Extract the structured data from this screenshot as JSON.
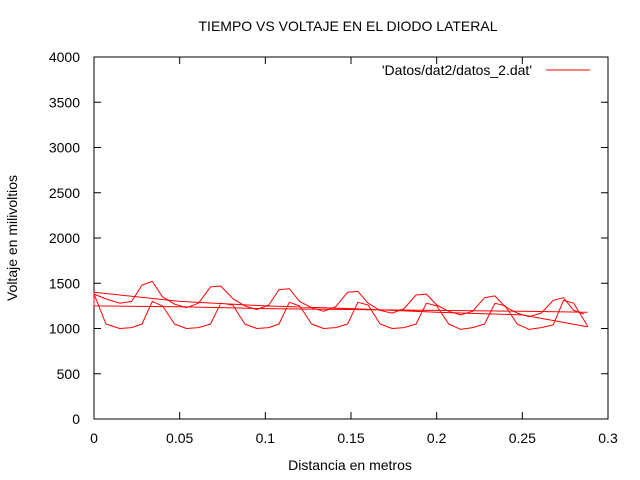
{
  "chart_data": {
    "type": "line",
    "title": "TIEMPO VS VOLTAJE EN EL DIODO LATERAL",
    "xlabel": "Distancia en metros",
    "ylabel": "Voltaje en milivoltios",
    "xlim": [
      0,
      0.3
    ],
    "ylim": [
      0,
      4000
    ],
    "xticks": [
      0,
      0.05,
      0.1,
      0.15,
      0.2,
      0.25,
      0.3
    ],
    "xtick_labels": [
      "0",
      "0.05",
      "0.1",
      "0.15",
      "0.2",
      "0.25",
      "0.3"
    ],
    "yticks": [
      0,
      500,
      1000,
      1500,
      2000,
      2500,
      3000,
      3500,
      4000
    ],
    "ytick_labels": [
      "0",
      "500",
      "1000",
      "1500",
      "2000",
      "2500",
      "3000",
      "3500",
      "4000"
    ],
    "grid": false,
    "legend_position": "top-right",
    "series": [
      {
        "name": "'Datos/dat2/datos_2.dat'",
        "color": "#ff0000",
        "x": [
          0,
          0.007,
          0.015,
          0.022,
          0.028,
          0.034,
          0.04,
          0.047,
          0.054,
          0.061,
          0.068,
          0.074,
          0.081,
          0.088,
          0.095,
          0.102,
          0.108,
          0.114,
          0.12,
          0.127,
          0.134,
          0.141,
          0.148,
          0.154,
          0.16,
          0.167,
          0.174,
          0.181,
          0.188,
          0.194,
          0.2,
          0.207,
          0.214,
          0.221,
          0.228,
          0.234,
          0.24,
          0.247,
          0.254,
          0.261,
          0.268,
          0.274,
          0.28,
          0.288,
          0.288,
          0.25,
          0.2,
          0.15,
          0.1,
          0.05,
          0,
          0,
          0.05,
          0.1,
          0.15,
          0.2,
          0.25,
          0.288
        ],
        "y": [
          1380,
          1050,
          1000,
          1010,
          1050,
          1300,
          1250,
          1050,
          1000,
          1010,
          1050,
          1280,
          1260,
          1050,
          1000,
          1010,
          1050,
          1290,
          1250,
          1050,
          1000,
          1010,
          1050,
          1290,
          1260,
          1050,
          1000,
          1010,
          1050,
          1280,
          1250,
          1050,
          990,
          1010,
          1050,
          1280,
          1250,
          1050,
          990,
          1010,
          1040,
          1310,
          1280,
          1030,
          1020,
          1150,
          1180,
          1220,
          1250,
          1300,
          1400,
          1250,
          1240,
          1220,
          1210,
          1200,
          1190,
          1180
        ]
      },
      {
        "name": "",
        "color": "#ff0000",
        "x": [
          0,
          0.008,
          0.015,
          0.022,
          0.028,
          0.034,
          0.04,
          0.047,
          0.054,
          0.061,
          0.068,
          0.074,
          0.081,
          0.088,
          0.095,
          0.102,
          0.108,
          0.114,
          0.12,
          0.127,
          0.134,
          0.141,
          0.148,
          0.154,
          0.16,
          0.167,
          0.174,
          0.181,
          0.188,
          0.194,
          0.2,
          0.207,
          0.214,
          0.221,
          0.228,
          0.234,
          0.24,
          0.247,
          0.254,
          0.261,
          0.268,
          0.274,
          0.28,
          0.286
        ],
        "y": [
          1380,
          1320,
          1280,
          1300,
          1480,
          1520,
          1350,
          1270,
          1230,
          1280,
          1460,
          1470,
          1330,
          1250,
          1210,
          1260,
          1430,
          1440,
          1300,
          1230,
          1190,
          1240,
          1400,
          1410,
          1280,
          1200,
          1170,
          1220,
          1370,
          1380,
          1260,
          1190,
          1150,
          1190,
          1340,
          1360,
          1240,
          1170,
          1130,
          1170,
          1310,
          1340,
          1200,
          1160
        ]
      }
    ]
  }
}
